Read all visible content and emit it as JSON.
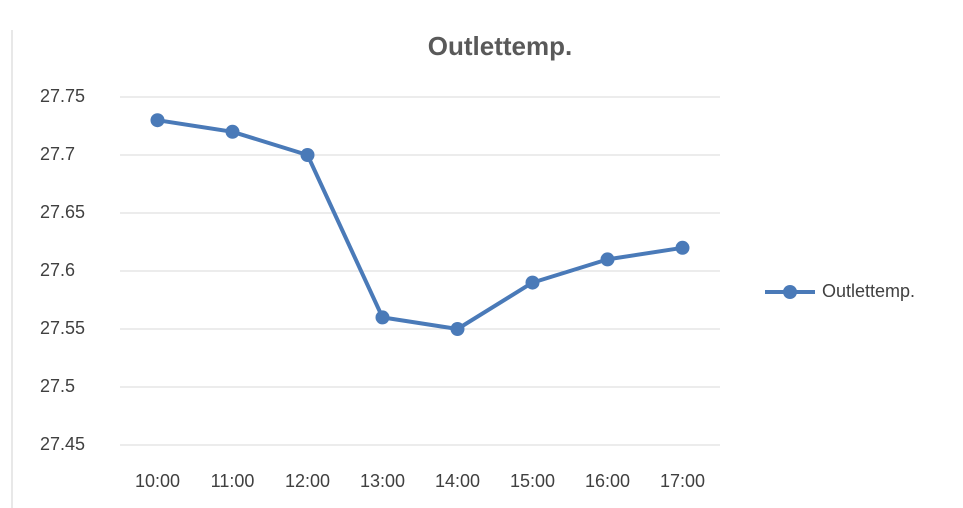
{
  "chart_data": {
    "type": "line",
    "title": "Outlettemp.",
    "categories": [
      "10:00",
      "11:00",
      "12:00",
      "13:00",
      "14:00",
      "15:00",
      "16:00",
      "17:00"
    ],
    "series": [
      {
        "name": "Outlettemp.",
        "color": "#4a7ab8",
        "values": [
          27.73,
          27.72,
          27.7,
          27.56,
          27.55,
          27.59,
          27.61,
          27.62
        ]
      }
    ],
    "ylim": [
      27.45,
      27.75
    ],
    "yticks": [
      27.45,
      27.5,
      27.55,
      27.6,
      27.65,
      27.7,
      27.75
    ],
    "grid": true,
    "legend": "right"
  }
}
